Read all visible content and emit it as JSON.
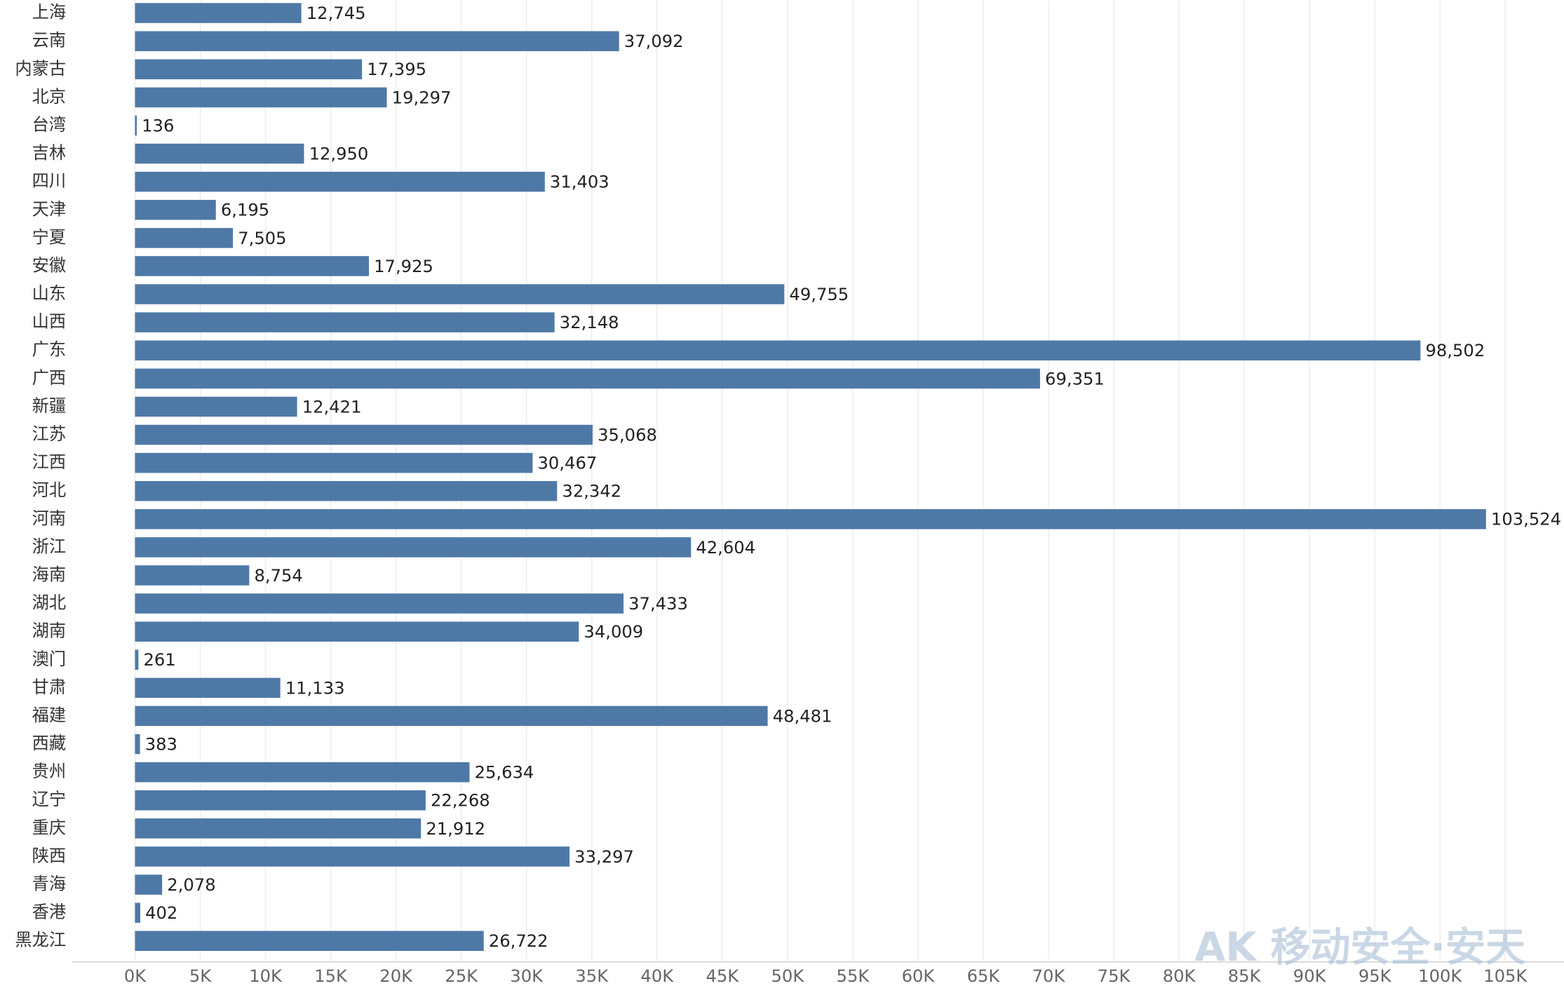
{
  "chart_data": {
    "type": "bar",
    "orientation": "horizontal",
    "categories": [
      "上海",
      "云南",
      "内蒙古",
      "北京",
      "台湾",
      "吉林",
      "四川",
      "天津",
      "宁夏",
      "安徽",
      "山东",
      "山西",
      "广东",
      "广西",
      "新疆",
      "江苏",
      "江西",
      "河北",
      "河南",
      "浙江",
      "海南",
      "湖北",
      "湖南",
      "澳门",
      "甘肃",
      "福建",
      "西藏",
      "贵州",
      "辽宁",
      "重庆",
      "陕西",
      "青海",
      "香港",
      "黑龙江"
    ],
    "values": [
      12745,
      37092,
      17395,
      19297,
      136,
      12950,
      31403,
      6195,
      7505,
      17925,
      49755,
      32148,
      98502,
      69351,
      12421,
      35068,
      30467,
      32342,
      103524,
      42604,
      8754,
      37433,
      34009,
      261,
      11133,
      48481,
      383,
      25634,
      22268,
      21912,
      33297,
      2078,
      402,
      26722
    ],
    "value_labels": [
      "12,745",
      "37,092",
      "17,395",
      "19,297",
      "136",
      "12,950",
      "31,403",
      "6,195",
      "7,505",
      "17,925",
      "49,755",
      "32,148",
      "98,502",
      "69,351",
      "12,421",
      "35,068",
      "30,467",
      "32,342",
      "103,524",
      "42,604",
      "8,754",
      "37,433",
      "34,009",
      "261",
      "11,133",
      "48,481",
      "383",
      "25,634",
      "22,268",
      "21,912",
      "33,297",
      "2,078",
      "402",
      "26,722"
    ],
    "color": "#4e79a7",
    "xlim": [
      0,
      109500
    ],
    "xticks": [
      {
        "value": 0,
        "label": "0K"
      },
      {
        "value": 5000,
        "label": "5K"
      },
      {
        "value": 10000,
        "label": "10K"
      },
      {
        "value": 15000,
        "label": "15K"
      },
      {
        "value": 20000,
        "label": "20K"
      },
      {
        "value": 25000,
        "label": "25K"
      },
      {
        "value": 30000,
        "label": "30K"
      },
      {
        "value": 35000,
        "label": "35K"
      },
      {
        "value": 40000,
        "label": "40K"
      },
      {
        "value": 45000,
        "label": "45K"
      },
      {
        "value": 50000,
        "label": "50K"
      },
      {
        "value": 55000,
        "label": "55K"
      },
      {
        "value": 60000,
        "label": "60K"
      },
      {
        "value": 65000,
        "label": "65K"
      },
      {
        "value": 70000,
        "label": "70K"
      },
      {
        "value": 75000,
        "label": "75K"
      },
      {
        "value": 80000,
        "label": "80K"
      },
      {
        "value": 85000,
        "label": "85K"
      },
      {
        "value": 90000,
        "label": "90K"
      },
      {
        "value": 95000,
        "label": "95K"
      },
      {
        "value": 100000,
        "label": "100K"
      },
      {
        "value": 105000,
        "label": "105K"
      }
    ],
    "grid": true,
    "watermark": "AK 移动安全·安天"
  }
}
